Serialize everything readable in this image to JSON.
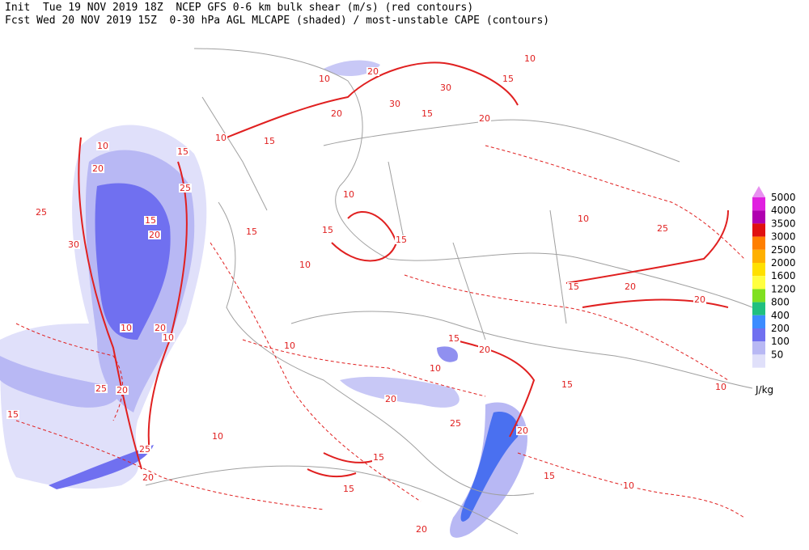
{
  "header": {
    "line1": "Init  Tue 19 NOV 2019 18Z  NCEP GFS 0-6 km bulk shear (m/s) (red contours)",
    "line2": "Fcst Wed 20 NOV 2019 15Z  0-30 hPa AGL MLCAPE (shaded) / most-unstable CAPE (contours)"
  },
  "legend": {
    "unit": "J/kg",
    "arrow_color": "#e890f0",
    "items": [
      {
        "label": 5000,
        "color": "#e020e0"
      },
      {
        "label": 4000,
        "color": "#b000b0"
      },
      {
        "label": 3500,
        "color": "#e01010"
      },
      {
        "label": 3000,
        "color": "#ff7f00"
      },
      {
        "label": 2500,
        "color": "#ffb000"
      },
      {
        "label": 2000,
        "color": "#ffe000"
      },
      {
        "label": 1600,
        "color": "#ffff40"
      },
      {
        "label": 1200,
        "color": "#80e020"
      },
      {
        "label": 800,
        "color": "#20c080"
      },
      {
        "label": 400,
        "color": "#3c8cff"
      },
      {
        "label": 200,
        "color": "#7070f0"
      },
      {
        "label": 100,
        "color": "#b8b8f4"
      },
      {
        "label": 50,
        "color": "#e0e0fa"
      }
    ]
  },
  "contour_labels": [
    10,
    20,
    10,
    15,
    30,
    30,
    15,
    20,
    20,
    15,
    10,
    10,
    15,
    20,
    25,
    25,
    15,
    20,
    30,
    15,
    15,
    15,
    10,
    10,
    25,
    20,
    15,
    20,
    10,
    20,
    10,
    10,
    15,
    20,
    25,
    20,
    15,
    20,
    25,
    20,
    15,
    15,
    10,
    15,
    20,
    20,
    25,
    10,
    15,
    10,
    10,
    10
  ]
}
